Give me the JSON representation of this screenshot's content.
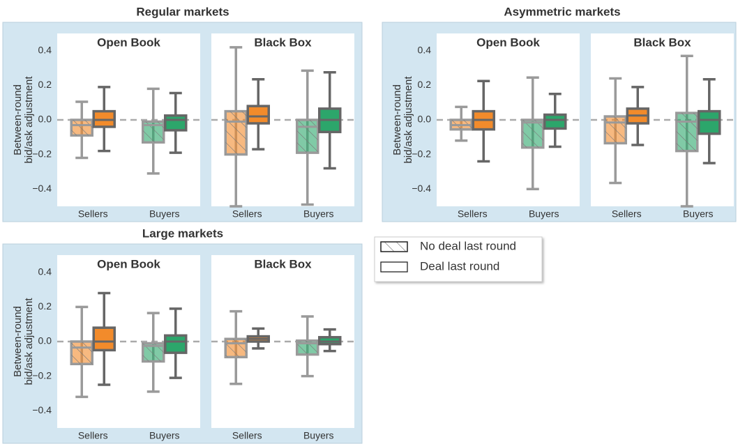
{
  "chart_data": [
    {
      "type": "box",
      "title": "Regular markets",
      "ylabel": [
        "Between-round",
        "bid/ask adjustment"
      ],
      "ylim": [
        -0.5,
        0.5
      ],
      "yticks": [
        {
          "value": -0.4,
          "label": "−0.4"
        },
        {
          "value": -0.2,
          "label": "−0.2"
        },
        {
          "value": 0,
          "label": "0.0"
        },
        0.2,
        0.4
      ],
      "panels": [
        {
          "title": "Open Book",
          "categories": [
            "Sellers",
            "Buyers"
          ],
          "colors": [
            "#f28b2b",
            "#2ca66b"
          ],
          "boxes": [
            [
              {
                "low": -0.22,
                "q1": -0.09,
                "median": -0.03,
                "q3": 0.0,
                "high": 0.105
              },
              {
                "low": -0.18,
                "q1": -0.04,
                "median": 0.0,
                "q3": 0.05,
                "high": 0.19
              }
            ],
            [
              {
                "low": -0.31,
                "q1": -0.13,
                "median": -0.03,
                "q3": -0.01,
                "high": 0.18
              },
              {
                "low": -0.19,
                "q1": -0.06,
                "median": 0.0,
                "q3": 0.025,
                "high": 0.155
              }
            ]
          ]
        },
        {
          "title": "Black Box",
          "categories": [
            "Sellers",
            "Buyers"
          ],
          "colors": [
            "#f28b2b",
            "#2ca66b"
          ],
          "boxes": [
            [
              {
                "low": -0.5,
                "q1": -0.2,
                "median": -0.01,
                "q3": 0.05,
                "high": 0.42
              },
              {
                "low": -0.17,
                "q1": -0.02,
                "median": 0.02,
                "q3": 0.08,
                "high": 0.235
              }
            ],
            [
              {
                "low": -0.49,
                "q1": -0.19,
                "median": -0.04,
                "q3": 0.0,
                "high": 0.285
              },
              {
                "low": -0.28,
                "q1": -0.07,
                "median": 0.0,
                "q3": 0.065,
                "high": 0.275
              }
            ]
          ]
        }
      ]
    },
    {
      "type": "box",
      "title": "Asymmetric markets",
      "ylabel": [
        "Between-round",
        "bid/ask adjustment"
      ],
      "ylim": [
        -0.5,
        0.5
      ],
      "yticks": [
        {
          "value": -0.4,
          "label": "−0.4"
        },
        {
          "value": -0.2,
          "label": "−0.2"
        },
        {
          "value": 0,
          "label": "0.0"
        },
        0.2,
        0.4
      ],
      "panels": [
        {
          "title": "Open Book",
          "categories": [
            "Sellers",
            "Buyers"
          ],
          "colors": [
            "#f28b2b",
            "#2ca66b"
          ],
          "boxes": [
            [
              {
                "low": -0.12,
                "q1": -0.055,
                "median": -0.03,
                "q3": 0.0,
                "high": 0.075
              },
              {
                "low": -0.24,
                "q1": -0.055,
                "median": 0.0,
                "q3": 0.05,
                "high": 0.225
              }
            ],
            [
              {
                "low": -0.4,
                "q1": -0.16,
                "median": -0.015,
                "q3": 0.0,
                "high": 0.245
              },
              {
                "low": -0.155,
                "q1": -0.05,
                "median": 0.0,
                "q3": 0.03,
                "high": 0.15
              }
            ]
          ]
        },
        {
          "title": "Black Box",
          "categories": [
            "Sellers",
            "Buyers"
          ],
          "colors": [
            "#f28b2b",
            "#2ca66b"
          ],
          "boxes": [
            [
              {
                "low": -0.365,
                "q1": -0.135,
                "median": -0.015,
                "q3": 0.02,
                "high": 0.24
              },
              {
                "low": -0.145,
                "q1": -0.02,
                "median": 0.025,
                "q3": 0.065,
                "high": 0.19
              }
            ],
            [
              {
                "low": -0.5,
                "q1": -0.18,
                "median": -0.01,
                "q3": 0.04,
                "high": 0.37
              },
              {
                "low": -0.25,
                "q1": -0.08,
                "median": 0.0,
                "q3": 0.05,
                "high": 0.235
              }
            ]
          ]
        }
      ]
    },
    {
      "type": "box",
      "title": "Large markets",
      "ylabel": [
        "Between-round",
        "bid/ask adjustment"
      ],
      "ylim": [
        -0.5,
        0.5
      ],
      "yticks": [
        {
          "value": -0.4,
          "label": "−0.4"
        },
        {
          "value": -0.2,
          "label": "−0.2"
        },
        {
          "value": 0,
          "label": "0.0"
        },
        0.2,
        0.4
      ],
      "panels": [
        {
          "title": "Open Book",
          "categories": [
            "Sellers",
            "Buyers"
          ],
          "colors": [
            "#f28b2b",
            "#2ca66b"
          ],
          "boxes": [
            [
              {
                "low": -0.32,
                "q1": -0.13,
                "median": -0.035,
                "q3": 0.0,
                "high": 0.2
              },
              {
                "low": -0.25,
                "q1": -0.05,
                "median": 0.0,
                "q3": 0.08,
                "high": 0.28
              }
            ],
            [
              {
                "low": -0.29,
                "q1": -0.115,
                "median": -0.025,
                "q3": -0.01,
                "high": 0.165
              },
              {
                "low": -0.21,
                "q1": -0.065,
                "median": 0.0,
                "q3": 0.035,
                "high": 0.19
              }
            ]
          ]
        },
        {
          "title": "Black Box",
          "categories": [
            "Sellers",
            "Buyers"
          ],
          "colors": [
            "#f28b2b",
            "#2ca66b"
          ],
          "boxes": [
            [
              {
                "low": -0.245,
                "q1": -0.09,
                "median": -0.01,
                "q3": 0.015,
                "high": 0.175
              },
              {
                "low": -0.04,
                "q1": 0.0,
                "median": 0.015,
                "q3": 0.03,
                "high": 0.075
              }
            ],
            [
              {
                "low": -0.2,
                "q1": -0.075,
                "median": -0.01,
                "q3": 0.005,
                "high": 0.145
              },
              {
                "low": -0.055,
                "q1": -0.015,
                "median": 0.0,
                "q3": 0.025,
                "high": 0.07
              }
            ]
          ]
        }
      ]
    }
  ],
  "legend": {
    "entries": [
      {
        "name": "No deal last round",
        "hatch": true
      },
      {
        "name": "Deal last round",
        "hatch": false
      }
    ]
  }
}
